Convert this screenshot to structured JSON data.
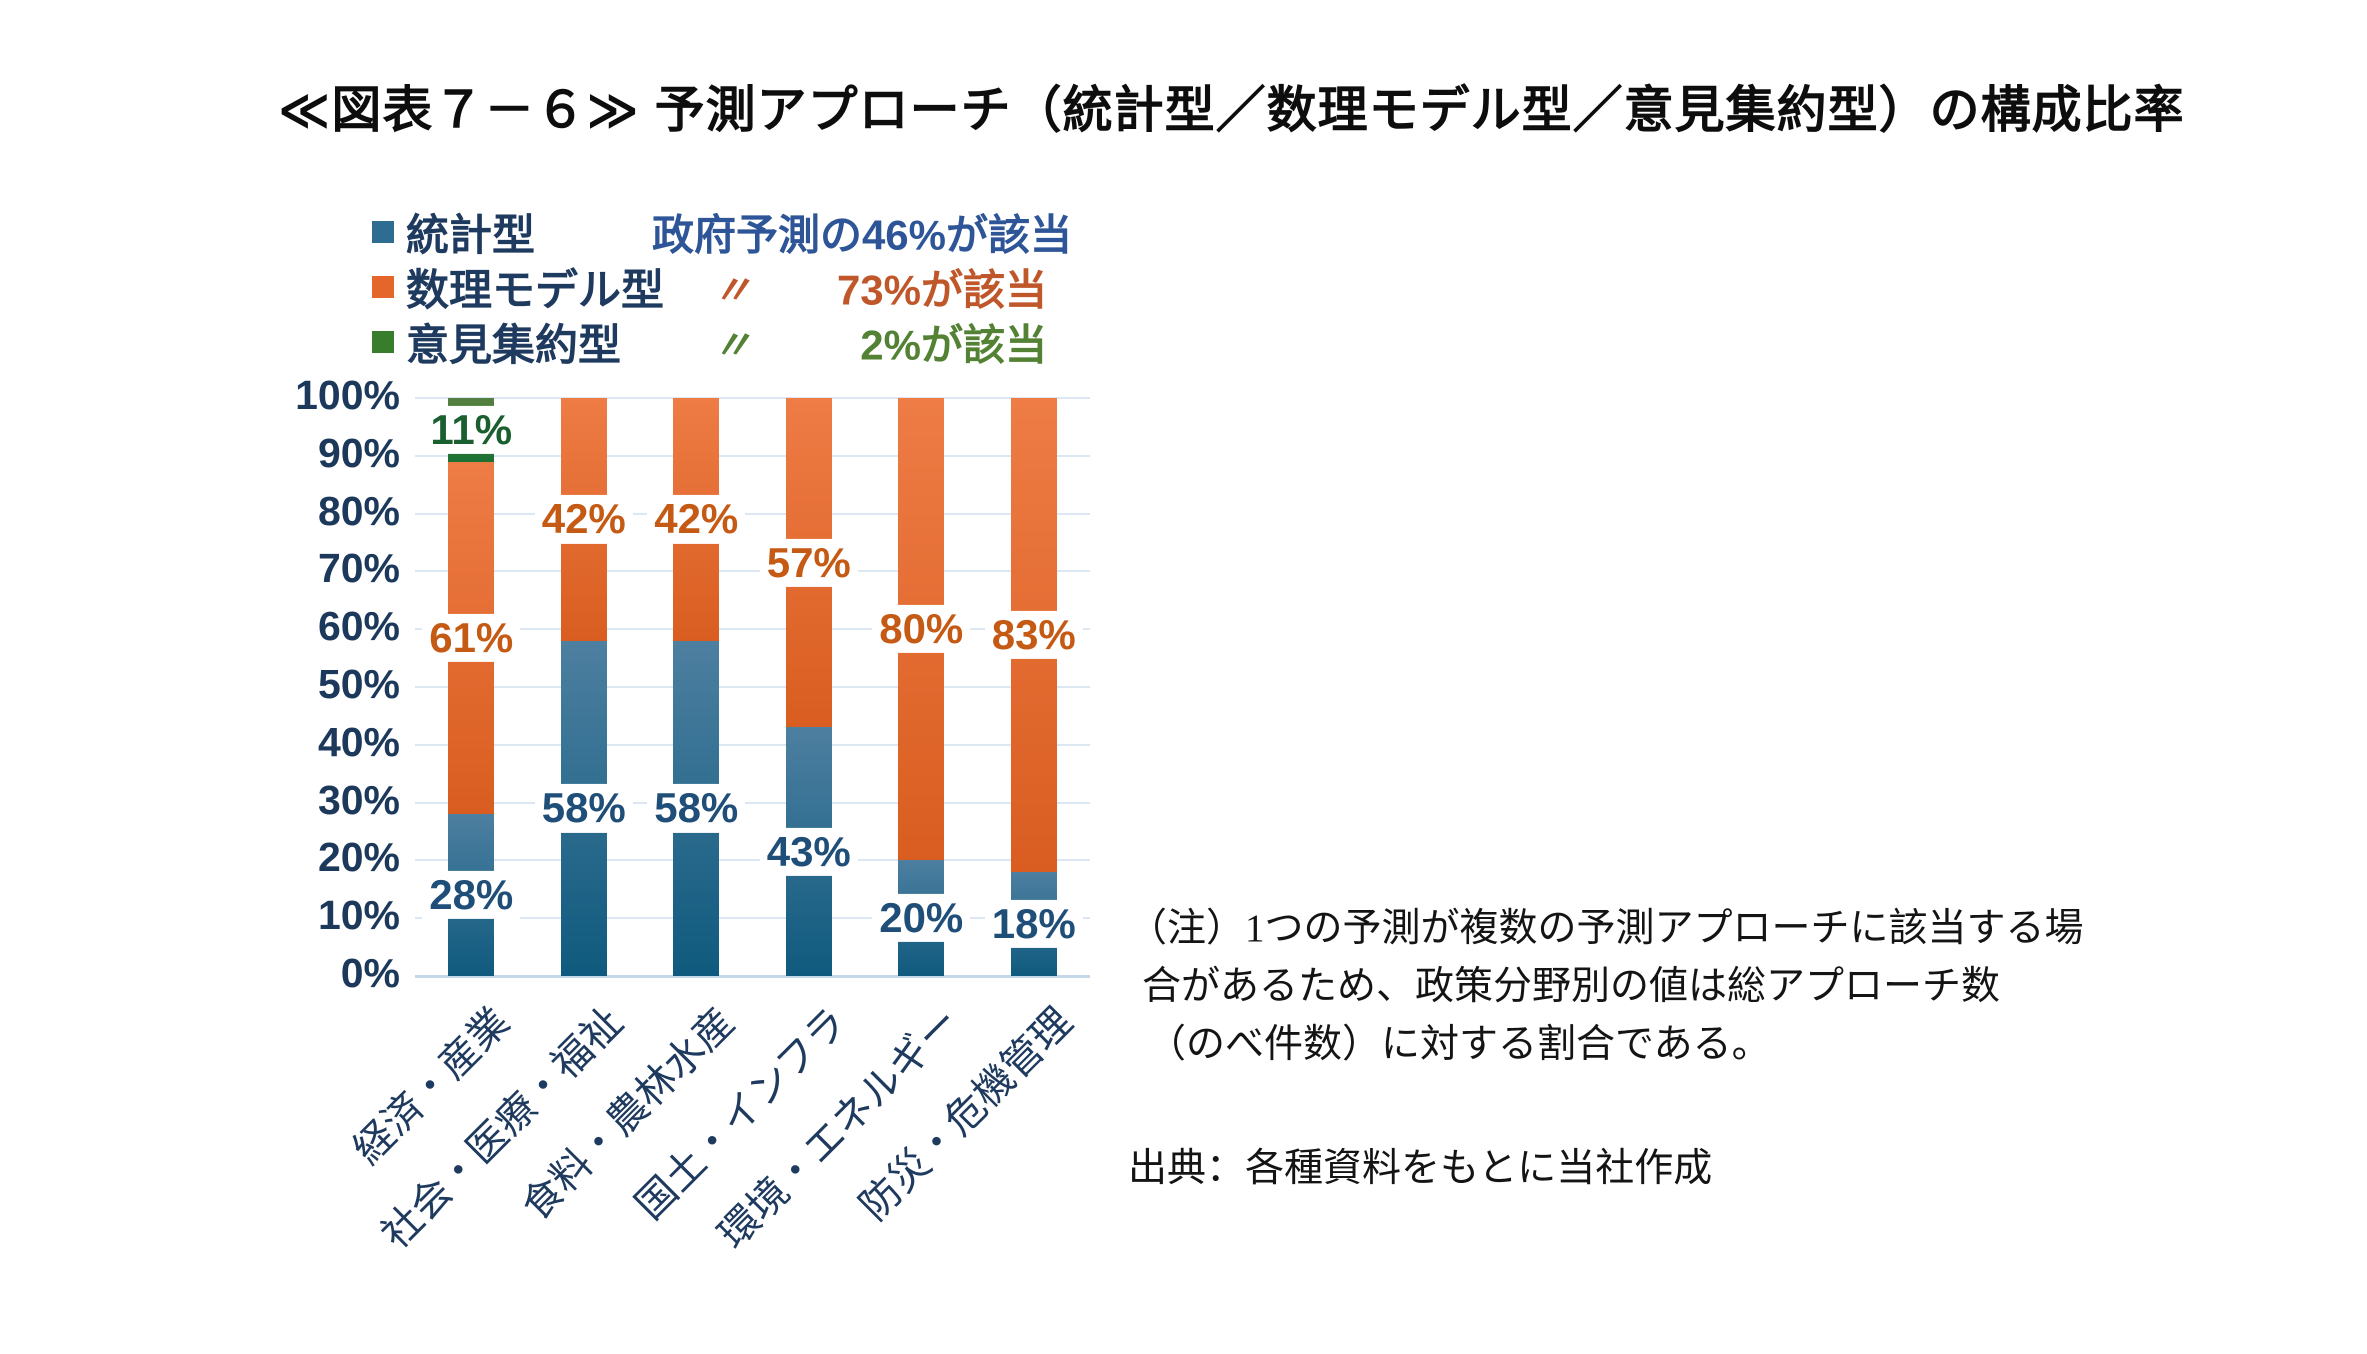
{
  "title": "≪図表７－６≫ 予測アプローチ（統計型／数理モデル型／意見集約型）の構成比率",
  "legend": {
    "items": [
      {
        "label": "統計型",
        "ditto": "",
        "annotation": "政府予測の46%が該当"
      },
      {
        "label": "数理モデル型",
        "ditto": "〃",
        "annotation": "73%が該当"
      },
      {
        "label": "意見集約型",
        "ditto": "〃",
        "annotation": "2%が該当"
      }
    ]
  },
  "chart_data": {
    "type": "bar",
    "subtype": "stacked-percent-column",
    "title": "予測アプローチ（統計型／数理モデル型／意見集約型）の構成比率",
    "categories": [
      "経済・産業",
      "社会・医療・福祉",
      "食料・農林水産",
      "国土・インフラ",
      "環境・エネルギー",
      "防災・危機管理"
    ],
    "series": [
      {
        "name": "統計型",
        "values": [
          28,
          58,
          58,
          43,
          20,
          18
        ]
      },
      {
        "name": "数理モデル型",
        "values": [
          61,
          42,
          42,
          57,
          80,
          83
        ]
      },
      {
        "name": "意見集約型",
        "values": [
          11,
          0,
          0,
          0,
          0,
          0
        ]
      }
    ],
    "y_ticks": [
      "0%",
      "10%",
      "20%",
      "30%",
      "40%",
      "50%",
      "60%",
      "70%",
      "80%",
      "90%",
      "100%"
    ],
    "ylim": [
      0,
      100
    ],
    "grid": true,
    "legend_position": "top-left",
    "label_suffix": "%"
  },
  "colors": {
    "series_blue": "#2E6D91",
    "series_orange": "#E5662B",
    "series_green": "#377D2C",
    "blue_grad_top": "#4D7FA0",
    "blue_grad_bottom": "#0F5A7E",
    "orange_grad_top": "#EE7C45",
    "orange_grad_bottom": "#D95D20",
    "green_grad_top": "#55803F",
    "green_grad_bottom": "#1B7134",
    "label_blue": "#1F4E79",
    "label_orange": "#C55A15",
    "label_green": "#1A5F2F",
    "annotation_blue": "#2E5597",
    "annotation_orange": "#C0572A",
    "annotation_green": "#548235",
    "axis_text": "#1C395C",
    "gridline": "#DDE7F3",
    "baseline": "#C5D7E9",
    "legend_text": "#1F3A5F"
  },
  "note": {
    "lines": [
      "（注）1つの予測が複数の予測アプローチに該当する場",
      "合があるため、政策分野別の値は総アプローチ数",
      "（のべ件数）に対する割合である。"
    ]
  },
  "source": "出典：各種資料をもとに当社作成"
}
